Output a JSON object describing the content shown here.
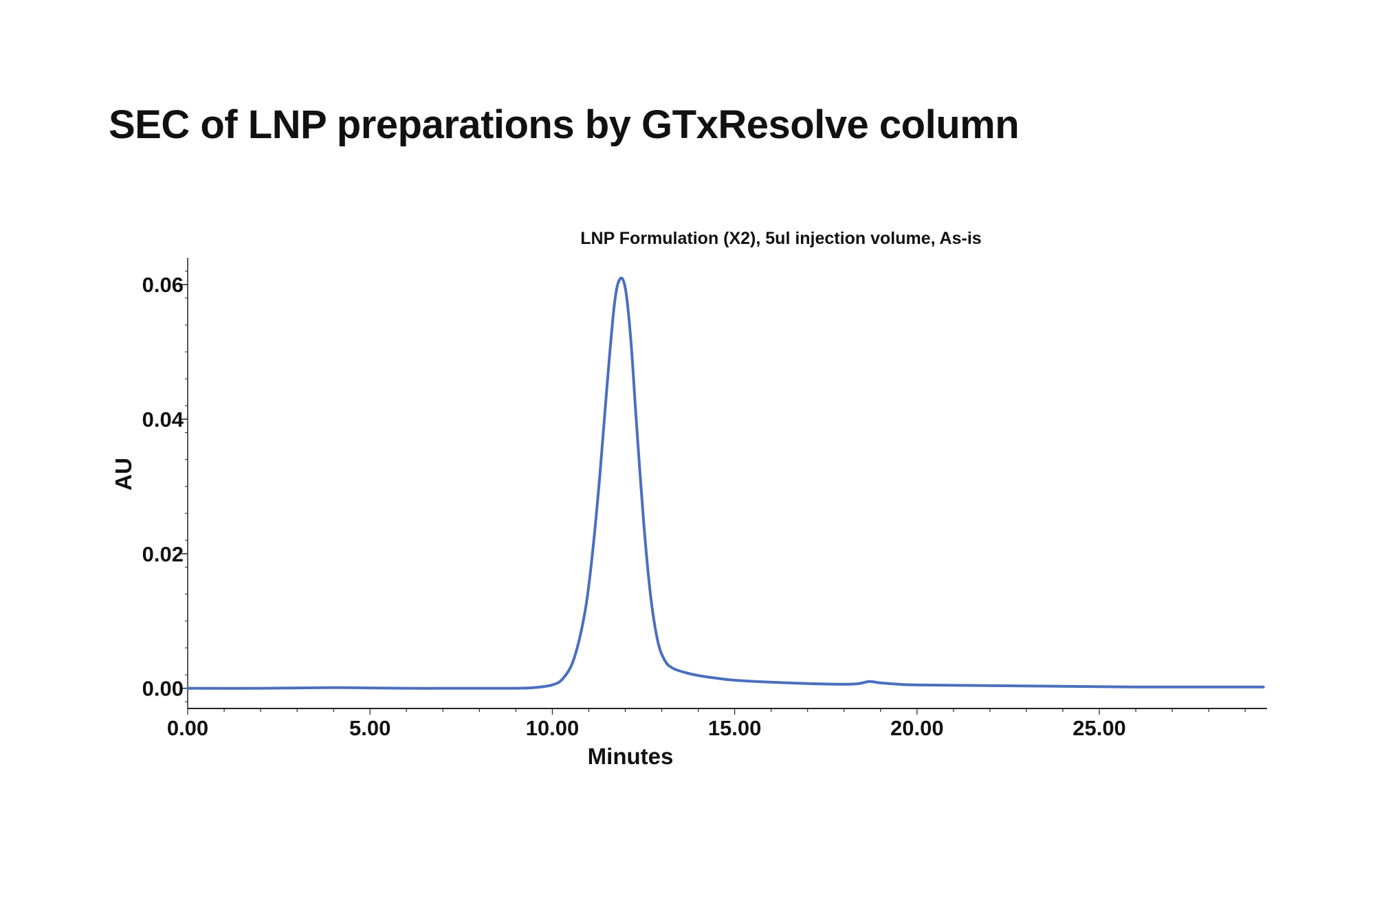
{
  "page": {
    "title": "SEC of LNP preparations by GTxResolve column"
  },
  "chart_data": {
    "type": "line",
    "title": "LNP Formulation (X2), 5ul injection volume, As-is",
    "xlabel": "Minutes",
    "ylabel": "AU",
    "xlim": [
      0,
      29.6
    ],
    "ylim": [
      -0.003,
      0.064
    ],
    "xticks": [
      "0.00",
      "5.00",
      "10.00",
      "15.00",
      "20.00",
      "25.00"
    ],
    "yticks": [
      "0.00",
      "0.02",
      "0.04",
      "0.06"
    ],
    "grid": false,
    "color": "#4a6fbe",
    "series": [
      {
        "x": [
          0,
          2,
          4,
          6,
          8,
          9,
          9.5,
          10,
          10.3,
          10.6,
          10.9,
          11.1,
          11.3,
          11.5,
          11.7,
          11.85,
          12,
          12.15,
          12.3,
          12.5,
          12.7,
          12.9,
          13.1,
          13.3,
          13.6,
          14,
          14.5,
          15,
          16,
          17,
          18,
          18.4,
          18.7,
          19,
          19.5,
          20,
          22,
          24,
          26,
          28,
          29.5
        ],
        "y": [
          0,
          0,
          0.0001,
          0,
          0,
          0,
          0.0001,
          0.0005,
          0.0015,
          0.0045,
          0.0115,
          0.02,
          0.0315,
          0.045,
          0.057,
          0.0608,
          0.0595,
          0.052,
          0.04,
          0.025,
          0.0135,
          0.0068,
          0.004,
          0.003,
          0.0024,
          0.0019,
          0.0015,
          0.0012,
          0.0009,
          0.0007,
          0.0006,
          0.0007,
          0.001,
          0.0008,
          0.0006,
          0.0005,
          0.0004,
          0.0003,
          0.0002,
          0.0002,
          0.0002
        ]
      }
    ]
  }
}
